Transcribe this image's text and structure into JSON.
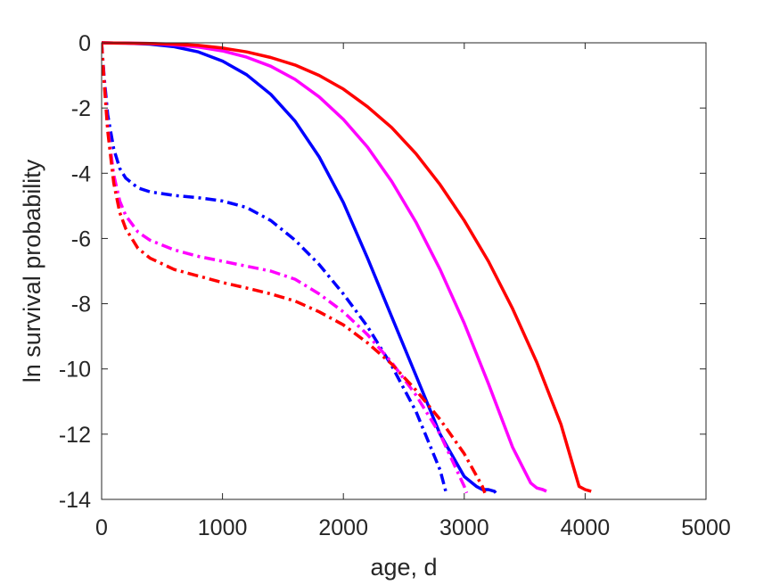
{
  "chart_data": {
    "type": "line",
    "title": "",
    "xlabel": "age, d",
    "ylabel": "ln survival probability",
    "xlim": [
      0,
      5000
    ],
    "ylim": [
      -14,
      0
    ],
    "xticks": [
      "0",
      "1000",
      "2000",
      "3000",
      "4000",
      "5000"
    ],
    "yticks": [
      "0",
      "-2",
      "-4",
      "-6",
      "-8",
      "-10",
      "-12",
      "-14"
    ],
    "grid": false,
    "legend": "none",
    "series": [
      {
        "color": "#0000ff",
        "style": "solid",
        "x": [
          0,
          200,
          400,
          600,
          800,
          1000,
          1200,
          1400,
          1600,
          1800,
          2000,
          2200,
          2400,
          2600,
          2800,
          3000,
          3100,
          3150,
          3200,
          3250,
          3260
        ],
        "y": [
          0,
          -0.01,
          -0.04,
          -0.12,
          -0.28,
          -0.56,
          -0.98,
          -1.58,
          -2.4,
          -3.5,
          -4.9,
          -6.6,
          -8.4,
          -10.2,
          -12.0,
          -13.3,
          -13.6,
          -13.7,
          -13.7,
          -13.75,
          -13.8
        ]
      },
      {
        "color": "#ff00ff",
        "style": "solid",
        "x": [
          0,
          200,
          400,
          600,
          800,
          1000,
          1200,
          1400,
          1600,
          1800,
          2000,
          2200,
          2400,
          2600,
          2800,
          3000,
          3200,
          3400,
          3550,
          3600,
          3650,
          3680
        ],
        "y": [
          0,
          -0.01,
          -0.02,
          -0.06,
          -0.13,
          -0.25,
          -0.44,
          -0.72,
          -1.12,
          -1.66,
          -2.35,
          -3.2,
          -4.25,
          -5.5,
          -6.95,
          -8.6,
          -10.45,
          -12.4,
          -13.5,
          -13.65,
          -13.7,
          -13.75
        ]
      },
      {
        "color": "#ff0000",
        "style": "solid",
        "x": [
          0,
          200,
          400,
          600,
          800,
          1000,
          1200,
          1400,
          1600,
          1800,
          2000,
          2200,
          2400,
          2600,
          2800,
          3000,
          3200,
          3400,
          3600,
          3800,
          3950,
          4000,
          4050
        ],
        "y": [
          0,
          -0.01,
          -0.02,
          -0.04,
          -0.08,
          -0.16,
          -0.28,
          -0.45,
          -0.68,
          -1.0,
          -1.42,
          -1.96,
          -2.6,
          -3.4,
          -4.35,
          -5.45,
          -6.7,
          -8.15,
          -9.8,
          -11.7,
          -13.6,
          -13.7,
          -13.75
        ]
      },
      {
        "color": "#0000ff",
        "style": "dashdot",
        "x": [
          0,
          20,
          50,
          100,
          150,
          200,
          300,
          400,
          600,
          800,
          1000,
          1200,
          1400,
          1600,
          1800,
          2000,
          2200,
          2400,
          2600,
          2800,
          2850
        ],
        "y": [
          0,
          -1.0,
          -2.2,
          -3.25,
          -3.85,
          -4.15,
          -4.45,
          -4.57,
          -4.68,
          -4.75,
          -4.85,
          -5.05,
          -5.45,
          -6.05,
          -6.8,
          -7.7,
          -8.7,
          -9.9,
          -11.3,
          -13.1,
          -13.8
        ]
      },
      {
        "color": "#ff00ff",
        "style": "dashdot",
        "x": [
          0,
          20,
          50,
          100,
          150,
          200,
          300,
          400,
          600,
          800,
          1000,
          1200,
          1400,
          1600,
          1800,
          2000,
          2200,
          2400,
          2600,
          2800,
          3000,
          3020
        ],
        "y": [
          0,
          -1.1,
          -2.6,
          -4.05,
          -4.85,
          -5.3,
          -5.8,
          -6.05,
          -6.35,
          -6.55,
          -6.7,
          -6.85,
          -7.0,
          -7.25,
          -7.7,
          -8.25,
          -8.95,
          -9.8,
          -10.8,
          -12.0,
          -13.6,
          -13.8
        ]
      },
      {
        "color": "#ff0000",
        "style": "dashdot",
        "x": [
          0,
          20,
          50,
          100,
          150,
          200,
          300,
          400,
          600,
          800,
          1000,
          1200,
          1400,
          1600,
          1800,
          2000,
          2200,
          2400,
          2600,
          2800,
          3000,
          3150,
          3170
        ],
        "y": [
          0,
          -1.15,
          -2.7,
          -4.3,
          -5.2,
          -5.7,
          -6.3,
          -6.6,
          -6.95,
          -7.15,
          -7.35,
          -7.52,
          -7.7,
          -7.92,
          -8.25,
          -8.65,
          -9.2,
          -9.85,
          -10.65,
          -11.55,
          -12.6,
          -13.6,
          -13.8
        ]
      }
    ]
  }
}
